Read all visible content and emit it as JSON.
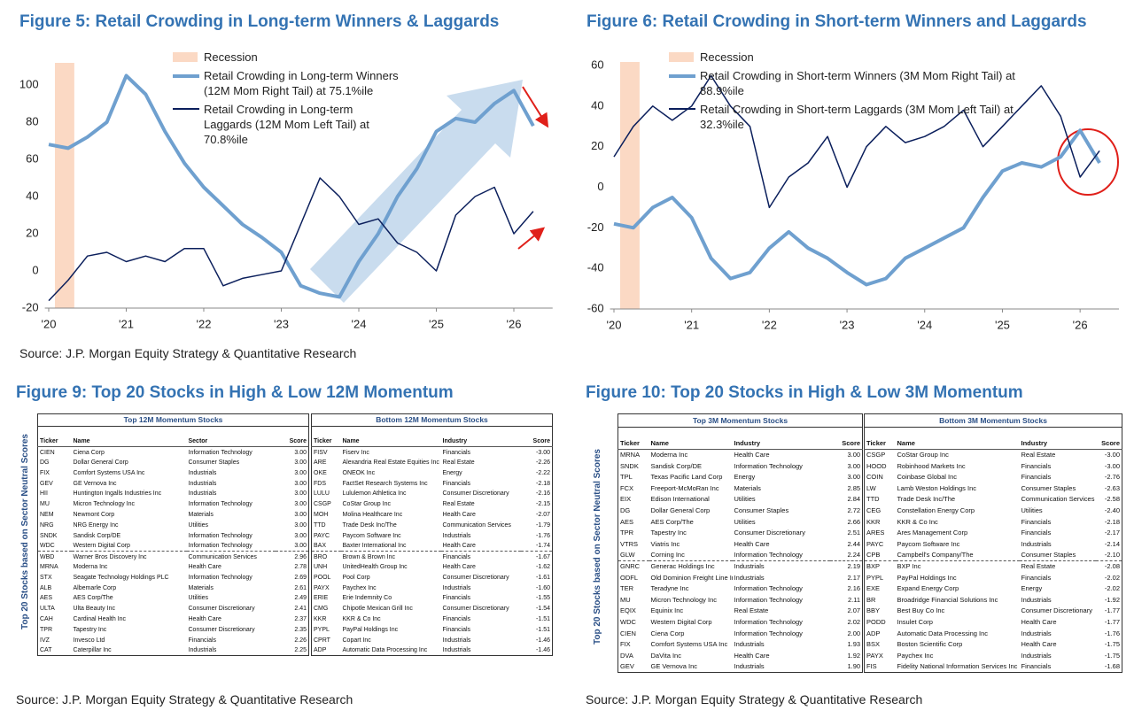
{
  "chart_data": [
    {
      "type": "line",
      "title": "Figure 5: Retail Crowding in Long-term Winners & Laggards",
      "source": "Source: J.P. Morgan Equity Strategy & Quantitative Research",
      "recession_label": "Recession",
      "recession": [
        2020.08,
        2020.33
      ],
      "recession_color": "#fbd9c4",
      "x": [
        2020,
        2020.25,
        2020.5,
        2020.75,
        2021,
        2021.25,
        2021.5,
        2021.75,
        2022,
        2022.25,
        2022.5,
        2022.75,
        2023,
        2023.25,
        2023.5,
        2023.75,
        2024,
        2024.25,
        2024.5,
        2024.75,
        2025,
        2025.25,
        2025.5,
        2025.75,
        2026,
        2026.25
      ],
      "series": [
        {
          "name": "Retail Crowding in Long-term Winners (12M Mom Right Tail)  at 75.1%ile",
          "color": "#6fa0cf",
          "width": 4,
          "values": [
            68,
            66,
            72,
            80,
            105,
            95,
            75,
            58,
            45,
            35,
            25,
            18,
            10,
            -8,
            -12,
            -14,
            5,
            20,
            40,
            55,
            75,
            82,
            80,
            90,
            97,
            78
          ]
        },
        {
          "name": "Retail Crowding in Long-term Laggards (12M Mom Left Tail) at 70.8%ile",
          "color": "#0b1f5c",
          "width": 1.5,
          "values": [
            -16,
            -5,
            8,
            10,
            5,
            8,
            5,
            12,
            12,
            -8,
            -4,
            -2,
            0,
            25,
            50,
            40,
            25,
            28,
            15,
            10,
            0,
            30,
            40,
            45,
            20,
            32
          ]
        }
      ],
      "xlim": [
        2019.95,
        2026.5
      ],
      "xticks": [
        {
          "value": 2020,
          "label": "'20"
        },
        {
          "value": 2021,
          "label": "'21"
        },
        {
          "value": 2022,
          "label": "'22"
        },
        {
          "value": 2023,
          "label": "'23"
        },
        {
          "value": 2024,
          "label": "'24"
        },
        {
          "value": 2025,
          "label": "'25"
        },
        {
          "value": 2026,
          "label": "'26"
        }
      ],
      "ylim": [
        -20,
        110
      ],
      "yticks": [
        -20,
        0,
        20,
        40,
        60,
        80,
        100
      ],
      "grid": false
    },
    {
      "type": "line",
      "title": "Figure 6: Retail Crowding in Short-term Winners and Laggards",
      "recession_label": "Recession",
      "recession": [
        2020.08,
        2020.33
      ],
      "recession_color": "#fbd9c4",
      "x": [
        2020,
        2020.25,
        2020.5,
        2020.75,
        2021,
        2021.25,
        2021.5,
        2021.75,
        2022,
        2022.25,
        2022.5,
        2022.75,
        2023,
        2023.25,
        2023.5,
        2023.75,
        2024,
        2024.25,
        2024.5,
        2024.75,
        2025,
        2025.25,
        2025.5,
        2025.75,
        2026,
        2026.25
      ],
      "series": [
        {
          "name": "Retail Crowding in Short-term Winners (3M Mom Right Tail)  at 88.9%ile",
          "color": "#6fa0cf",
          "width": 4,
          "values": [
            -18,
            -20,
            -10,
            -5,
            -15,
            -35,
            -45,
            -42,
            -30,
            -22,
            -30,
            -35,
            -42,
            -48,
            -45,
            -35,
            -30,
            -25,
            -20,
            -5,
            8,
            12,
            10,
            15,
            28,
            12
          ]
        },
        {
          "name": "Retail Crowding in Short-term Laggards (3M Mom Left Tail) at 32.3%ile",
          "color": "#0b1f5c",
          "width": 1.5,
          "values": [
            15,
            30,
            40,
            33,
            40,
            55,
            40,
            30,
            -10,
            5,
            12,
            25,
            0,
            20,
            30,
            22,
            25,
            30,
            38,
            20,
            30,
            40,
            50,
            35,
            5,
            18
          ]
        }
      ],
      "xlim": [
        2019.95,
        2026.5
      ],
      "xticks": [
        {
          "value": 2020,
          "label": "'20"
        },
        {
          "value": 2021,
          "label": "'21"
        },
        {
          "value": 2022,
          "label": "'22"
        },
        {
          "value": 2023,
          "label": "'23"
        },
        {
          "value": 2024,
          "label": "'24"
        },
        {
          "value": 2025,
          "label": "'25"
        },
        {
          "value": 2026,
          "label": "'26"
        }
      ],
      "ylim": [
        -60,
        60
      ],
      "yticks": [
        -60,
        -40,
        -20,
        0,
        20,
        40,
        60
      ],
      "grid": false
    }
  ],
  "tables": [
    {
      "title": "Figure 9: Top 20 Stocks in High & Low 12M Momentum",
      "side_label": "Top 20 Stocks based on Sector Neutral Scores",
      "source": "Source: J.P. Morgan Equity Strategy & Quantitative Research",
      "panels": [
        {
          "caption": "Top 12M Momentum Stocks",
          "header": [
            "Ticker",
            "Name",
            "Sector",
            "Score"
          ],
          "rows": [
            [
              "CIEN",
              "Ciena Corp",
              "Information Technology",
              "3.00"
            ],
            [
              "DG",
              "Dollar General Corp",
              "Consumer Staples",
              "3.00"
            ],
            [
              "FIX",
              "Comfort Systems USA Inc",
              "Industrials",
              "3.00"
            ],
            [
              "GEV",
              "GE Vernova Inc",
              "Industrials",
              "3.00"
            ],
            [
              "HII",
              "Huntington Ingalls Industries Inc",
              "Industrials",
              "3.00"
            ],
            [
              "MU",
              "Micron Technology Inc",
              "Information Technology",
              "3.00"
            ],
            [
              "NEM",
              "Newmont Corp",
              "Materials",
              "3.00"
            ],
            [
              "NRG",
              "NRG Energy Inc",
              "Utilities",
              "3.00"
            ],
            [
              "SNDK",
              "Sandisk Corp/DE",
              "Information Technology",
              "3.00"
            ],
            [
              "WDC",
              "Western Digital Corp",
              "Information Technology",
              "3.00"
            ],
            [
              "WBD",
              "Warner Bros Discovery Inc",
              "Communication Services",
              "2.96"
            ],
            [
              "MRNA",
              "Moderna Inc",
              "Health Care",
              "2.78"
            ],
            [
              "STX",
              "Seagate Technology Holdings PLC",
              "Information Technology",
              "2.69"
            ],
            [
              "ALB",
              "Albemarle Corp",
              "Materials",
              "2.61"
            ],
            [
              "AES",
              "AES Corp/The",
              "Utilities",
              "2.49"
            ],
            [
              "ULTA",
              "Ulta Beauty Inc",
              "Consumer Discretionary",
              "2.41"
            ],
            [
              "CAH",
              "Cardinal Health Inc",
              "Health Care",
              "2.37"
            ],
            [
              "TPR",
              "Tapestry Inc",
              "Consumer Discretionary",
              "2.35"
            ],
            [
              "IVZ",
              "Invesco Ltd",
              "Financials",
              "2.26"
            ],
            [
              "CAT",
              "Caterpillar Inc",
              "Industrials",
              "2.25"
            ]
          ]
        },
        {
          "caption": "Bottom 12M Momentum Stocks",
          "header": [
            "Ticker",
            "Name",
            "Industry",
            "Score"
          ],
          "rows": [
            [
              "FISV",
              "Fiserv Inc",
              "Financials",
              "-3.00"
            ],
            [
              "ARE",
              "Alexandria Real Estate Equities Inc",
              "Real Estate",
              "-2.26"
            ],
            [
              "OKE",
              "ONEOK Inc",
              "Energy",
              "-2.22"
            ],
            [
              "FDS",
              "FactSet Research Systems Inc",
              "Financials",
              "-2.18"
            ],
            [
              "LULU",
              "Lululemon Athletica Inc",
              "Consumer Discretionary",
              "-2.16"
            ],
            [
              "CSGP",
              "CoStar Group Inc",
              "Real Estate",
              "-2.15"
            ],
            [
              "MOH",
              "Molina Healthcare Inc",
              "Health Care",
              "-2.07"
            ],
            [
              "TTD",
              "Trade Desk Inc/The",
              "Communication Services",
              "-1.79"
            ],
            [
              "PAYC",
              "Paycom Software Inc",
              "Industrials",
              "-1.76"
            ],
            [
              "BAX",
              "Baxter International Inc",
              "Health Care",
              "-1.74"
            ],
            [
              "BRO",
              "Brown & Brown Inc",
              "Financials",
              "-1.67"
            ],
            [
              "UNH",
              "UnitedHealth Group Inc",
              "Health Care",
              "-1.62"
            ],
            [
              "POOL",
              "Pool Corp",
              "Consumer Discretionary",
              "-1.61"
            ],
            [
              "PAYX",
              "Paychex Inc",
              "Industrials",
              "-1.60"
            ],
            [
              "ERIE",
              "Erie Indemnity Co",
              "Financials",
              "-1.55"
            ],
            [
              "CMG",
              "Chipotle Mexican Grill Inc",
              "Consumer Discretionary",
              "-1.54"
            ],
            [
              "KKR",
              "KKR & Co Inc",
              "Financials",
              "-1.51"
            ],
            [
              "PYPL",
              "PayPal Holdings Inc",
              "Financials",
              "-1.51"
            ],
            [
              "CPRT",
              "Copart Inc",
              "Industrials",
              "-1.46"
            ],
            [
              "ADP",
              "Automatic Data Processing Inc",
              "Industrials",
              "-1.46"
            ]
          ]
        }
      ]
    },
    {
      "title": "Figure 10: Top 20 Stocks in High & Low 3M Momentum",
      "side_label": "Top 20 Stocks based on Sector Neutral Scores",
      "source": "Source: J.P. Morgan Equity Strategy & Quantitative Research",
      "panels": [
        {
          "caption": "Top 3M Momentum Stocks",
          "header": [
            "Ticker",
            "Name",
            "Industry",
            "Score"
          ],
          "rows": [
            [
              "MRNA",
              "Moderna Inc",
              "Health Care",
              "3.00"
            ],
            [
              "SNDK",
              "Sandisk Corp/DE",
              "Information Technology",
              "3.00"
            ],
            [
              "TPL",
              "Texas Pacific Land Corp",
              "Energy",
              "3.00"
            ],
            [
              "FCX",
              "Freeport-McMoRan Inc",
              "Materials",
              "2.85"
            ],
            [
              "EIX",
              "Edison International",
              "Utilities",
              "2.84"
            ],
            [
              "DG",
              "Dollar General Corp",
              "Consumer Staples",
              "2.72"
            ],
            [
              "AES",
              "AES Corp/The",
              "Utilities",
              "2.66"
            ],
            [
              "TPR",
              "Tapestry Inc",
              "Consumer Discretionary",
              "2.51"
            ],
            [
              "VTRS",
              "Viatris Inc",
              "Health Care",
              "2.44"
            ],
            [
              "GLW",
              "Corning Inc",
              "Information Technology",
              "2.24"
            ],
            [
              "GNRC",
              "Generac Holdings Inc",
              "Industrials",
              "2.19"
            ],
            [
              "ODFL",
              "Old Dominion Freight Line In",
              "Industrials",
              "2.17"
            ],
            [
              "TER",
              "Teradyne Inc",
              "Information Technology",
              "2.16"
            ],
            [
              "MU",
              "Micron Technology Inc",
              "Information Technology",
              "2.11"
            ],
            [
              "EQIX",
              "Equinix Inc",
              "Real Estate",
              "2.07"
            ],
            [
              "WDC",
              "Western Digital Corp",
              "Information Technology",
              "2.02"
            ],
            [
              "CIEN",
              "Ciena Corp",
              "Information Technology",
              "2.00"
            ],
            [
              "FIX",
              "Comfort Systems USA Inc",
              "Industrials",
              "1.93"
            ],
            [
              "DVA",
              "DaVita Inc",
              "Health Care",
              "1.92"
            ],
            [
              "GEV",
              "GE Vernova Inc",
              "Industrials",
              "1.90"
            ]
          ]
        },
        {
          "caption": "Bottom 3M Momentum Stocks",
          "header": [
            "Ticker",
            "Name",
            "Industry",
            "Score"
          ],
          "rows": [
            [
              "CSGP",
              "CoStar Group Inc",
              "Real Estate",
              "-3.00"
            ],
            [
              "HOOD",
              "Robinhood Markets Inc",
              "Financials",
              "-3.00"
            ],
            [
              "COIN",
              "Coinbase Global Inc",
              "Financials",
              "-2.76"
            ],
            [
              "LW",
              "Lamb Weston Holdings Inc",
              "Consumer Staples",
              "-2.63"
            ],
            [
              "TTD",
              "Trade Desk Inc/The",
              "Communication Services",
              "-2.58"
            ],
            [
              "CEG",
              "Constellation Energy Corp",
              "Utilities",
              "-2.40"
            ],
            [
              "KKR",
              "KKR & Co Inc",
              "Financials",
              "-2.18"
            ],
            [
              "ARES",
              "Ares Management Corp",
              "Financials",
              "-2.17"
            ],
            [
              "PAYC",
              "Paycom Software Inc",
              "Industrials",
              "-2.14"
            ],
            [
              "CPB",
              "Campbell's Company/The",
              "Consumer Staples",
              "-2.10"
            ],
            [
              "BXP",
              "BXP Inc",
              "Real Estate",
              "-2.08"
            ],
            [
              "PYPL",
              "PayPal Holdings Inc",
              "Financials",
              "-2.02"
            ],
            [
              "EXE",
              "Expand Energy Corp",
              "Energy",
              "-2.02"
            ],
            [
              "BR",
              "Broadridge Financial Solutions Inc",
              "Industrials",
              "-1.92"
            ],
            [
              "BBY",
              "Best Buy Co Inc",
              "Consumer Discretionary",
              "-1.77"
            ],
            [
              "PODD",
              "Insulet Corp",
              "Health Care",
              "-1.77"
            ],
            [
              "ADP",
              "Automatic Data Processing Inc",
              "Industrials",
              "-1.76"
            ],
            [
              "BSX",
              "Boston Scientific Corp",
              "Health Care",
              "-1.75"
            ],
            [
              "PAYX",
              "Paychex Inc",
              "Industrials",
              "-1.75"
            ],
            [
              "FIS",
              "Fidelity National Information Services Inc",
              "Financials",
              "-1.68"
            ]
          ]
        }
      ]
    }
  ]
}
